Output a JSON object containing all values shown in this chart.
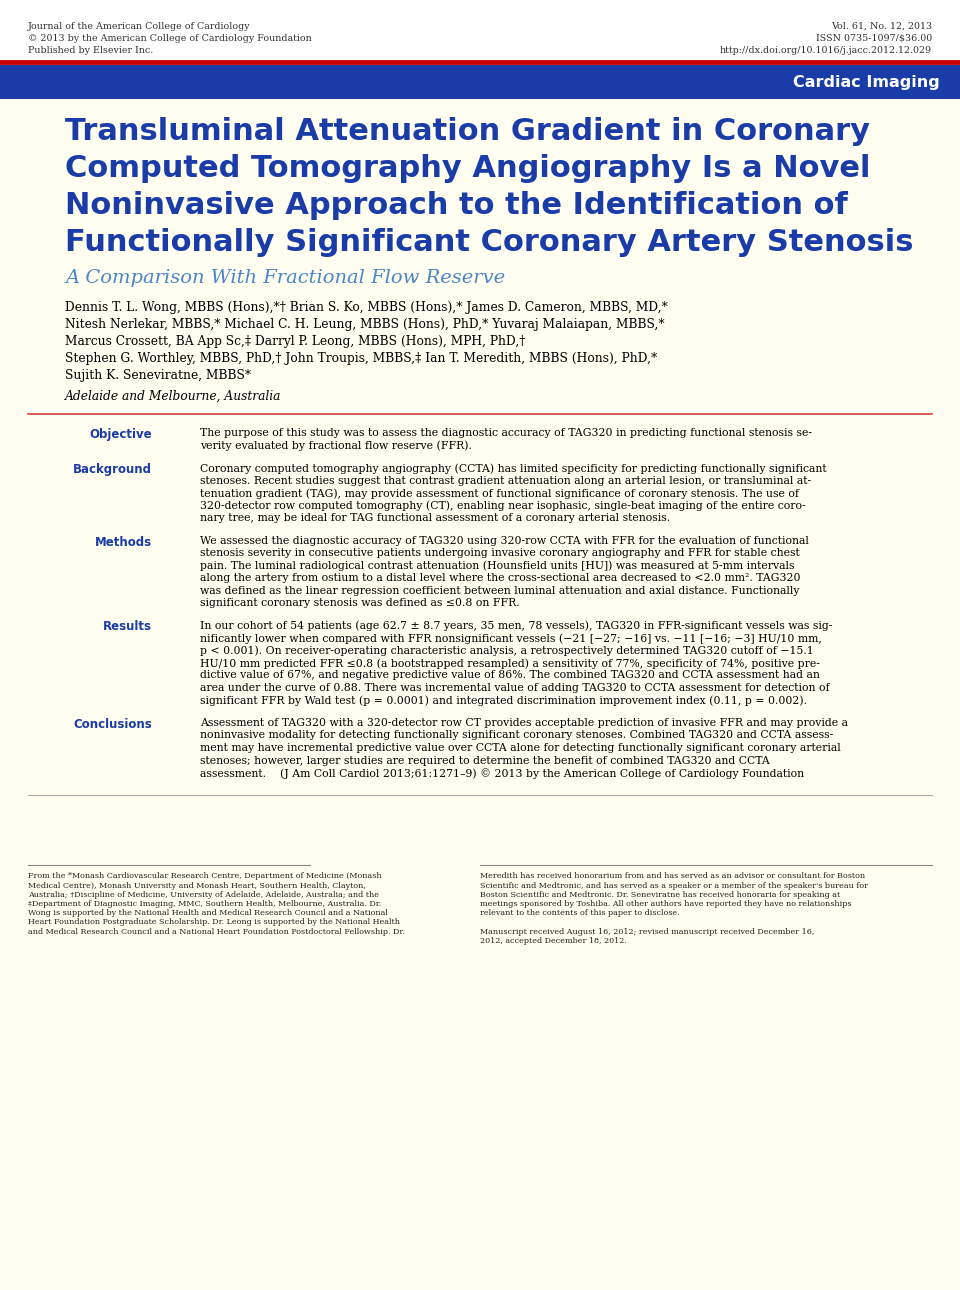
{
  "bg_color": "#fffef0",
  "white_bg": "#ffffff",
  "header_left_lines": [
    "Journal of the American College of Cardiology",
    "© 2013 by the American College of Cardiology Foundation",
    "Published by Elsevier Inc."
  ],
  "header_right_lines": [
    "Vol. 61, No. 12, 2013",
    "ISSN 0735-1097/$36.00",
    "http://dx.doi.org/10.1016/j.jacc.2012.12.029"
  ],
  "banner_color": "#1a3ca8",
  "banner_red_color": "#cc0000",
  "banner_text": "Cardiac Imaging",
  "main_title_lines": [
    "Transluminal Attenuation Gradient in Coronary",
    "Computed Tomography Angiography Is a Novel",
    "Noninvasive Approach to the Identification of",
    "Functionally Significant Coronary Artery Stenosis"
  ],
  "main_title_color": "#1a3ca8",
  "subtitle": "A Comparison With Fractional Flow Reserve",
  "subtitle_color": "#4a86c8",
  "authors_lines": [
    "Dennis T. L. Wong, MBBS (Hons),*† Brian S. Ko, MBBS (Hons),* James D. Cameron, MBBS, MD,*",
    "Nitesh Nerlekar, MBBS,* Michael C. H. Leung, MBBS (Hons), PhD,* Yuvaraj Malaiapan, MBBS,*",
    "Marcus Crossett, BA App Sc,‡ Darryl P. Leong, MBBS (Hons), MPH, PhD,†",
    "Stephen G. Worthley, MBBS, PhD,† John Troupis, MBBS,‡ Ian T. Meredith, MBBS (Hons), PhD,*",
    "Sujith K. Seneviratne, MBBS*"
  ],
  "affiliation": "Adelaide and Melbourne, Australia",
  "divider_color": "#cc4444",
  "section_label_color": "#1a3ca8",
  "sections": [
    {
      "label": "Objective",
      "text": "The purpose of this study was to assess the diagnostic accuracy of TAG320 in predicting functional stenosis se-\nverity evaluated by fractional flow reserve (FFR)."
    },
    {
      "label": "Background",
      "text": "Coronary computed tomography angiography (CCTA) has limited specificity for predicting functionally significant\nstenoses. Recent studies suggest that contrast gradient attenuation along an arterial lesion, or transluminal at-\ntenuation gradient (TAG), may provide assessment of functional significance of coronary stenosis. The use of\n320-detector row computed tomography (CT), enabling near isophasic, single-beat imaging of the entire coro-\nnary tree, may be ideal for TAG functional assessment of a coronary arterial stenosis."
    },
    {
      "label": "Methods",
      "text": "We assessed the diagnostic accuracy of TAG320 using 320-row CCTA with FFR for the evaluation of functional\nstenosis severity in consecutive patients undergoing invasive coronary angiography and FFR for stable chest\npain. The luminal radiological contrast attenuation (Hounsfield units [HU]) was measured at 5-mm intervals\nalong the artery from ostium to a distal level where the cross-sectional area decreased to <2.0 mm². TAG320\nwas defined as the linear regression coefficient between luminal attenuation and axial distance. Functionally\nsignificant coronary stenosis was defined as ≤0.8 on FFR."
    },
    {
      "label": "Results",
      "text": "In our cohort of 54 patients (age 62.7 ± 8.7 years, 35 men, 78 vessels), TAG320 in FFR-significant vessels was sig-\nnificantly lower when compared with FFR nonsignificant vessels (−21 [−27; −16] vs. −11 [−16; −3] HU/10 mm,\np < 0.001). On receiver-operating characteristic analysis, a retrospectively determined TAG320 cutoff of −15.1\nHU/10 mm predicted FFR ≤0.8 (a bootstrapped resampled) a sensitivity of 77%, specificity of 74%, positive pre-\ndictive value of 67%, and negative predictive value of 86%. The combined TAG320 and CCTA assessment had an\narea under the curve of 0.88. There was incremental value of adding TAG320 to CCTA assessment for detection of\nsignificant FFR by Wald test (p = 0.0001) and integrated discrimination improvement index (0.11, p = 0.002)."
    },
    {
      "label": "Conclusions",
      "text": "Assessment of TAG320 with a 320-detector row CT provides acceptable prediction of invasive FFR and may provide a\nnoninvasive modality for detecting functionally significant coronary stenoses. Combined TAG320 and CCTA assess-\nment may have incremental predictive value over CCTA alone for detecting functionally significant coronary arterial\nstenoses; however, larger studies are required to determine the benefit of combined TAG320 and CCTA\nassessment.    (J Am Coll Cardiol 2013;61:1271–9) © 2013 by the American College of Cardiology Foundation"
    }
  ],
  "footer_left_lines": [
    "From the *Monash Cardiovascular Research Centre, Department of Medicine (Monash",
    "Medical Centre), Monash University and Monash Heart, Southern Health, Clayton,",
    "Australia; †Discipline of Medicine, University of Adelaide, Adelaide, Australia; and the",
    "‡Department of Diagnostic Imaging, MMC, Southern Health, Melbourne, Australia. Dr.",
    "Wong is supported by the National Health and Medical Research Council and a National",
    "Heart Foundation Postgraduate Scholarship. Dr. Leong is supported by the National Health",
    "and Medical Research Council and a National Heart Foundation Postdoctoral Fellowship. Dr."
  ],
  "footer_right_lines": [
    "Meredith has received honorarium from and has served as an advisor or consultant for Boston",
    "Scientific and Medtronic, and has served as a speaker or a member of the speaker's bureau for",
    "Boston Scientific and Medtronic. Dr. Seneviratne has received honoraria for speaking at",
    "meetings sponsored by Toshiba. All other authors have reported they have no relationships",
    "relevant to the contents of this paper to disclose.",
    "",
    "Manuscript received August 16, 2012; revised manuscript received December 16,",
    "2012, accepted December 18, 2012."
  ]
}
